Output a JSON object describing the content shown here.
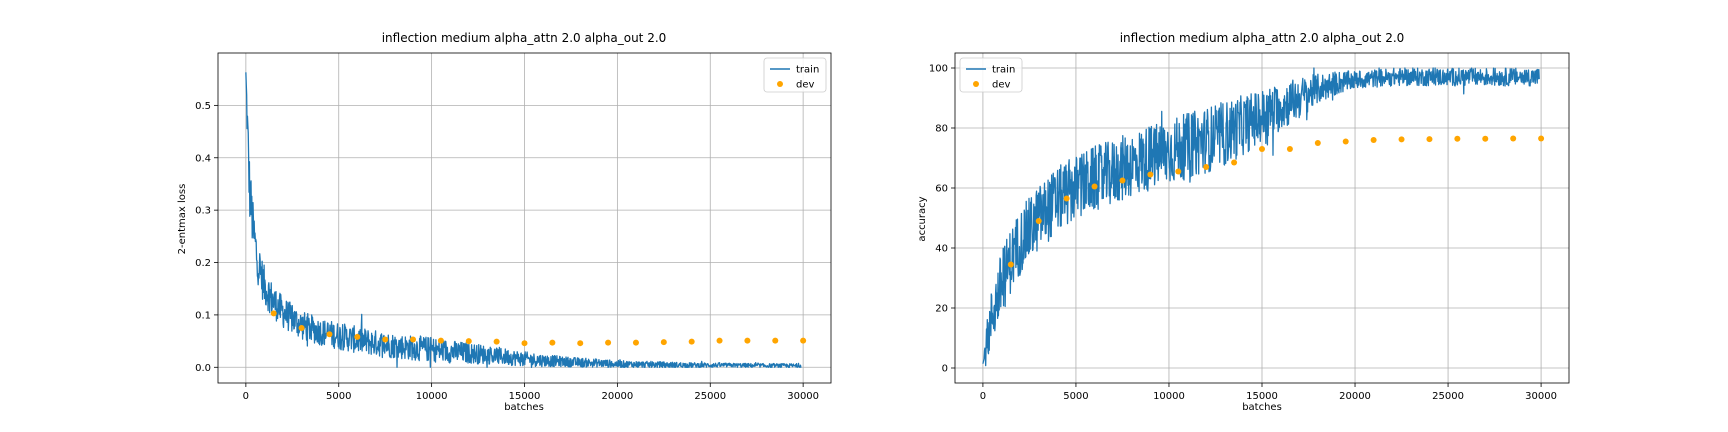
{
  "chart_data": [
    {
      "type": "line",
      "title": "inflection medium alpha_attn 2.0 alpha_out 2.0",
      "xlabel": "batches",
      "ylabel": "2-entmax loss",
      "xlim": [
        -1500,
        31500
      ],
      "ylim": [
        -0.03,
        0.6
      ],
      "xticks": [
        0,
        5000,
        10000,
        15000,
        20000,
        25000,
        30000
      ],
      "xtick_labels": [
        "0",
        "5000",
        "10000",
        "15000",
        "20000",
        "25000",
        "30000"
      ],
      "yticks": [
        0.0,
        0.1,
        0.2,
        0.3,
        0.4,
        0.5
      ],
      "ytick_labels": [
        "0.0",
        "0.1",
        "0.2",
        "0.3",
        "0.4",
        "0.5"
      ],
      "grid": true,
      "legend": "upper right",
      "series": [
        {
          "name": "train",
          "kind": "line",
          "color": "#1f77b4",
          "x": [
            0,
            100,
            200,
            400,
            600,
            800,
            1000,
            1500,
            2000,
            3000,
            4000,
            5000,
            6000,
            7000,
            8000,
            9000,
            10000,
            11000,
            12000,
            13000,
            14000,
            15000,
            16000,
            17000,
            18000,
            19000,
            20000,
            22000,
            24000,
            26000,
            28000,
            29900
          ],
          "mid": [
            0.56,
            0.44,
            0.34,
            0.26,
            0.21,
            0.18,
            0.155,
            0.125,
            0.105,
            0.08,
            0.068,
            0.06,
            0.052,
            0.046,
            0.041,
            0.037,
            0.034,
            0.03,
            0.027,
            0.024,
            0.02,
            0.016,
            0.013,
            0.011,
            0.009,
            0.008,
            0.006,
            0.005,
            0.004,
            0.004,
            0.003,
            0.003
          ],
          "spread": [
            0.01,
            0.06,
            0.06,
            0.05,
            0.045,
            0.04,
            0.038,
            0.032,
            0.03,
            0.028,
            0.026,
            0.026,
            0.026,
            0.025,
            0.024,
            0.024,
            0.024,
            0.022,
            0.02,
            0.018,
            0.016,
            0.014,
            0.012,
            0.01,
            0.009,
            0.008,
            0.007,
            0.006,
            0.005,
            0.004,
            0.004,
            0.004
          ]
        },
        {
          "name": "dev",
          "kind": "scatter",
          "color": "#ffa500",
          "x": [
            1500,
            3000,
            4500,
            6000,
            7500,
            9000,
            10500,
            12000,
            13500,
            15000,
            16500,
            18000,
            19500,
            21000,
            22500,
            24000,
            25500,
            27000,
            28500,
            30000
          ],
          "y": [
            0.103,
            0.075,
            0.063,
            0.058,
            0.053,
            0.053,
            0.051,
            0.05,
            0.049,
            0.046,
            0.047,
            0.046,
            0.047,
            0.047,
            0.048,
            0.049,
            0.051,
            0.051,
            0.051,
            0.051
          ]
        }
      ]
    },
    {
      "type": "line",
      "title": "inflection medium alpha_attn 2.0 alpha_out 2.0",
      "xlabel": "batches",
      "ylabel": "accuracy",
      "xlim": [
        -1500,
        31500
      ],
      "ylim": [
        -5,
        105
      ],
      "xticks": [
        0,
        5000,
        10000,
        15000,
        20000,
        25000,
        30000
      ],
      "xtick_labels": [
        "0",
        "5000",
        "10000",
        "15000",
        "20000",
        "25000",
        "30000"
      ],
      "yticks": [
        0,
        20,
        40,
        60,
        80,
        100
      ],
      "ytick_labels": [
        "0",
        "20",
        "40",
        "60",
        "80",
        "100"
      ],
      "grid": true,
      "legend": "upper left",
      "series": [
        {
          "name": "train",
          "kind": "line",
          "color": "#1f77b4",
          "x": [
            0,
            200,
            500,
            1000,
            1500,
            2000,
            3000,
            4000,
            5000,
            6000,
            7000,
            8000,
            9000,
            10000,
            11000,
            12000,
            13000,
            14000,
            15000,
            16000,
            17000,
            18000,
            19000,
            20000,
            22000,
            24000,
            26000,
            28000,
            29900
          ],
          "mid": [
            1,
            8,
            18,
            28,
            36,
            42,
            50,
            56,
            60,
            63,
            65,
            68,
            70,
            72,
            74,
            76,
            78,
            81,
            84,
            87,
            90,
            93,
            95,
            96,
            97,
            97,
            97,
            97,
            97
          ],
          "spread": [
            1,
            7,
            10,
            11,
            11,
            11,
            11,
            11,
            11,
            11,
            11,
            11,
            11,
            11,
            11,
            11,
            11,
            10,
            9,
            8,
            7,
            5,
            4,
            3,
            3,
            3,
            3,
            3,
            3
          ]
        },
        {
          "name": "dev",
          "kind": "scatter",
          "color": "#ffa500",
          "x": [
            1500,
            3000,
            4500,
            6000,
            7500,
            9000,
            10500,
            12000,
            13500,
            15000,
            16500,
            18000,
            19500,
            21000,
            22500,
            24000,
            25500,
            27000,
            28500,
            30000
          ],
          "y": [
            34.5,
            49,
            56.5,
            60.5,
            62.5,
            64.5,
            65.5,
            67,
            68.5,
            73,
            73,
            75,
            75.5,
            76,
            76.2,
            76.3,
            76.4,
            76.4,
            76.5,
            76.5
          ]
        }
      ]
    }
  ]
}
